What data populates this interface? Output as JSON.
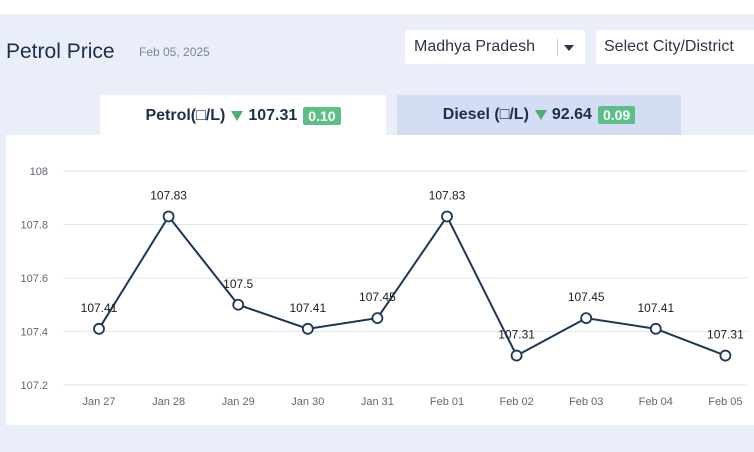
{
  "header": {
    "title": "Petrol Price",
    "date": "Feb 05, 2025"
  },
  "filters": {
    "state": "Madhya Pradesh",
    "city_placeholder": "Select City/District"
  },
  "tabs": [
    {
      "label": "Petrol(□/L)",
      "price": "107.31",
      "change": "0.10",
      "trend": "down"
    },
    {
      "label": "Diesel (□/L)",
      "price": "92.64",
      "change": "0.09",
      "trend": "down"
    }
  ],
  "colors": {
    "line": "#1c3657",
    "badge": "#5cbf85",
    "active_tab": "#ffffff",
    "inactive_tab": "#d3def4"
  },
  "chart_data": {
    "type": "line",
    "categories": [
      "Jan 27",
      "Jan 28",
      "Jan 29",
      "Jan 30",
      "Jan 31",
      "Feb 01",
      "Feb 02",
      "Feb 03",
      "Feb 04",
      "Feb 05"
    ],
    "series": [
      {
        "values": [
          107.41,
          107.83,
          107.5,
          107.41,
          107.45,
          107.83,
          107.31,
          107.45,
          107.41,
          107.31
        ]
      }
    ],
    "data_labels": [
      "107.41",
      "107.83",
      "107.5",
      "107.41",
      "107.45",
      "107.83",
      "107.31",
      "107.45",
      "107.41",
      "107.31"
    ],
    "yticks": [
      "107.2",
      "107.4",
      "107.6",
      "107.8",
      "108"
    ],
    "ylim": [
      107.2,
      108
    ],
    "grid": true,
    "title": "",
    "xlabel": "",
    "ylabel": ""
  }
}
